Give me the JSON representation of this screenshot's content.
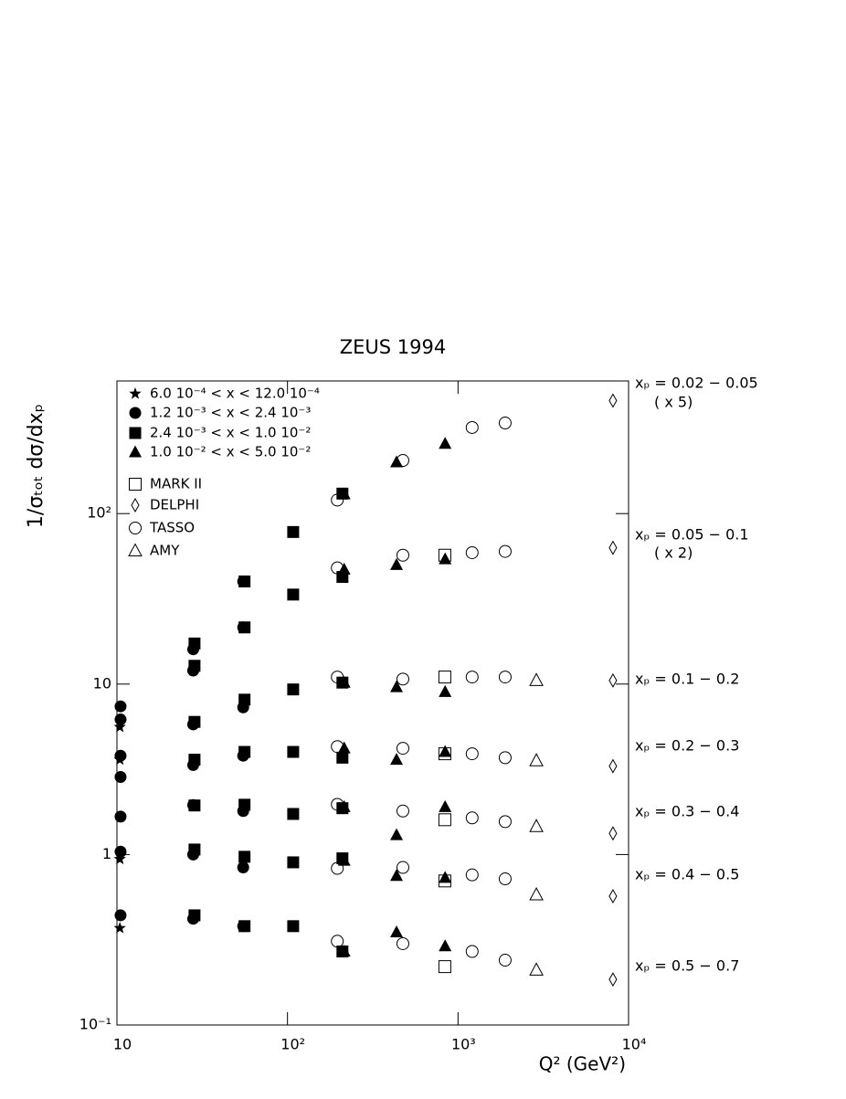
{
  "chart_data": {
    "type": "scatter",
    "title": "ZEUS 1994",
    "x_label": "Q² (GeV²)",
    "y_label": "1/σₜₒₜ dσ/dxₚ",
    "log_x": true,
    "log_y": true,
    "xlim": [
      10,
      10000
    ],
    "ylim": [
      0.1,
      600
    ],
    "xticks": [
      10,
      {
        "value": 100,
        "label": "10²"
      },
      {
        "value": 1000,
        "label": "10³"
      },
      {
        "value": 10000,
        "label": "10⁴"
      }
    ],
    "yticks": [
      {
        "value": 0.1,
        "label": "10⁻¹"
      },
      1,
      10,
      {
        "value": 100,
        "label": "10²"
      }
    ],
    "legend": "upper left",
    "annotations": [
      "xₚ = 0.02 − 0.05",
      "( x 5)",
      "xₚ = 0.05 − 0.1",
      "( x 2)",
      "xₚ = 0.1 − 0.2",
      "xₚ = 0.2 − 0.3",
      "xₚ = 0.3 − 0.4",
      "xₚ = 0.4 − 0.5",
      "xₚ = 0.5 − 0.7"
    ],
    "series": [
      {
        "name": "6.0 10⁻⁴ < x < 12.0 10⁻⁴",
        "marker": "star",
        "filled": true,
        "color": "#000000",
        "x": [
          10.4,
          10.4,
          10.4,
          10.4
        ],
        "values": [
          5.6,
          3.6,
          0.94,
          0.37
        ]
      },
      {
        "name": "1.2 10⁻³ < x < 2.4 10⁻³",
        "marker": "circle",
        "filled": true,
        "color": "#000000",
        "x": [
          10.5,
          10.5,
          10.5,
          10.5,
          10.5,
          10.5,
          10.5,
          28,
          28,
          28,
          28,
          28,
          28,
          28,
          55,
          55,
          55,
          55,
          55,
          55,
          55
        ],
        "values": [
          7.4,
          6.2,
          3.8,
          2.85,
          1.67,
          1.04,
          0.44,
          16,
          12,
          5.8,
          3.35,
          1.95,
          1.0,
          0.42,
          40,
          21.5,
          7.3,
          3.8,
          1.8,
          0.84,
          0.38
        ]
      },
      {
        "name": "2.4 10⁻³ < x < 1.0 10⁻²",
        "marker": "square",
        "filled": true,
        "color": "#000000",
        "x": [
          28.5,
          28.5,
          28.5,
          28.5,
          28.5,
          28.5,
          28.5,
          56,
          56,
          56,
          56,
          56,
          56,
          56,
          108,
          108,
          108,
          108,
          108,
          108,
          108,
          210,
          210,
          210,
          210,
          210,
          210,
          210
        ],
        "values": [
          17.3,
          12.8,
          6.0,
          3.6,
          1.94,
          1.07,
          0.44,
          40,
          21.5,
          8.1,
          4.0,
          1.96,
          0.97,
          0.38,
          78,
          33.5,
          9.3,
          4.0,
          1.73,
          0.9,
          0.38,
          131,
          42.5,
          10.2,
          3.7,
          1.87,
          0.95,
          0.27
        ]
      },
      {
        "name": "1.0 10⁻² < x < 5.0 10⁻²",
        "marker": "triangle",
        "filled": true,
        "color": "#000000",
        "x": [
          215,
          215,
          215,
          215,
          215,
          215,
          215,
          436,
          436,
          436,
          436,
          436,
          436,
          436,
          840,
          840,
          840,
          840,
          840,
          840,
          840
        ],
        "values": [
          130,
          47,
          10.2,
          4.2,
          1.9,
          0.92,
          0.27,
          200,
          50,
          9.6,
          3.6,
          1.3,
          0.75,
          0.35,
          257,
          54,
          9.0,
          4.0,
          1.9,
          0.73,
          0.29
        ]
      },
      {
        "name": "MARK II",
        "marker": "square",
        "filled": false,
        "color": "#000000",
        "x": [
          837,
          837,
          837,
          837,
          837,
          837
        ],
        "values": [
          57,
          11,
          3.9,
          1.6,
          0.7,
          0.22
        ]
      },
      {
        "name": "DELPHI",
        "marker": "diamond",
        "filled": false,
        "color": "#000000",
        "x": [
          8100,
          8100,
          8100,
          8100,
          8100,
          8100,
          8100
        ],
        "values": [
          460,
          63,
          10.5,
          3.3,
          1.33,
          0.57,
          0.185
        ]
      },
      {
        "name": "TASSO",
        "marker": "circle",
        "filled": false,
        "color": "#000000",
        "x": [
          196,
          196,
          196,
          196,
          196,
          196,
          196,
          475,
          475,
          475,
          475,
          475,
          475,
          475,
          1210,
          1210,
          1210,
          1210,
          1210,
          1210,
          1210,
          1890,
          1890,
          1890,
          1890,
          1890,
          1890,
          1890
        ],
        "values": [
          120,
          48,
          11,
          4.3,
          1.97,
          0.83,
          0.31,
          205,
          57,
          10.7,
          4.2,
          1.8,
          0.84,
          0.3,
          320,
          59,
          11,
          3.9,
          1.64,
          0.76,
          0.27,
          340,
          60,
          11,
          3.7,
          1.56,
          0.72,
          0.24
        ]
      },
      {
        "name": "AMY",
        "marker": "triangle",
        "filled": false,
        "color": "#000000",
        "x": [
          2880,
          2880,
          2880,
          2880,
          2880
        ],
        "values": [
          10.5,
          3.55,
          1.46,
          0.58,
          0.21
        ]
      }
    ]
  }
}
